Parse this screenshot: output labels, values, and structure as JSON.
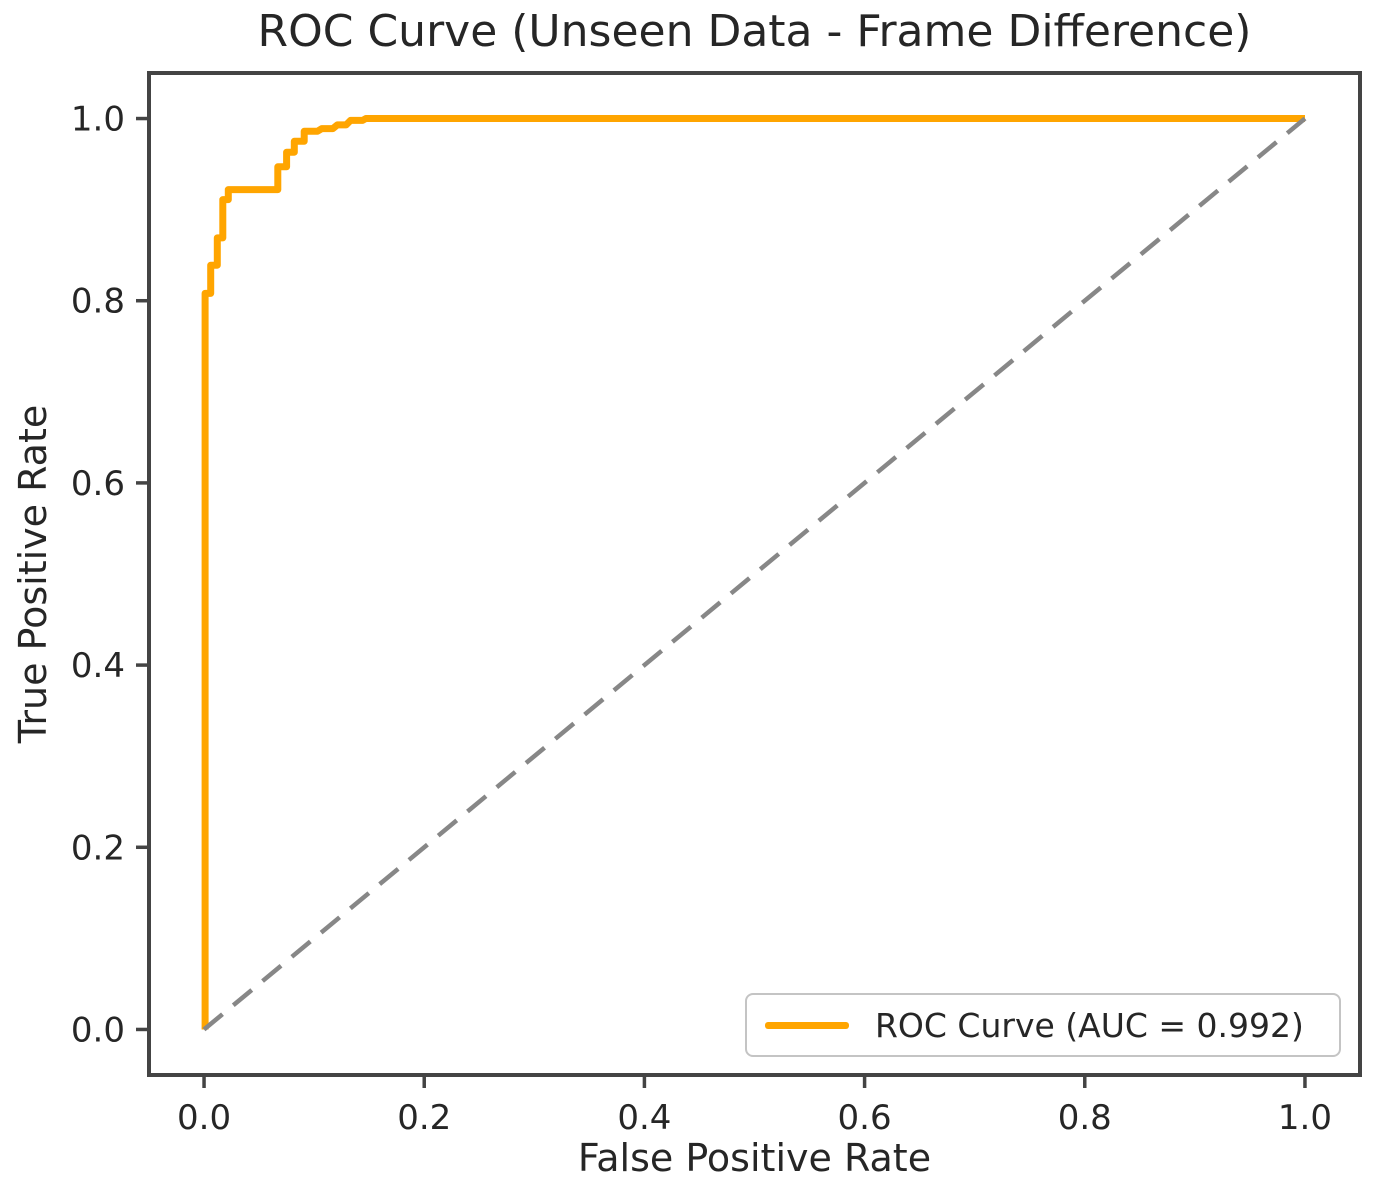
{
  "chart_data": {
    "type": "line",
    "title": "ROC Curve (Unseen Data - Frame Difference)",
    "xlabel": "False Positive Rate",
    "ylabel": "True Positive Rate",
    "xlim": [
      -0.05,
      1.05
    ],
    "ylim": [
      -0.05,
      1.05
    ],
    "xticks": [
      0.0,
      0.2,
      0.4,
      0.6,
      0.8,
      1.0
    ],
    "yticks": [
      0.0,
      0.2,
      0.4,
      0.6,
      0.8,
      1.0
    ],
    "grid": false,
    "auc": 0.992,
    "colors": {
      "roc_curve": "#FFA500",
      "chance_line": "#878787",
      "spine": "#444444",
      "tick": "#444444",
      "text": "#262626",
      "legend_border": "#c4c4c4",
      "background": "#ffffff"
    },
    "legend": {
      "position": "lower right",
      "entries": [
        {
          "label": "ROC Curve (AUC = 0.992)",
          "color": "#FFA500",
          "style": "solid"
        }
      ]
    },
    "series": [
      {
        "name": "ROC Curve (AUC = 0.992)",
        "style": "solid",
        "color": "#FFA500",
        "line_width": 7,
        "points": [
          [
            0.001,
            0.0
          ],
          [
            0.001,
            0.808
          ],
          [
            0.006,
            0.808
          ],
          [
            0.006,
            0.839
          ],
          [
            0.012,
            0.839
          ],
          [
            0.012,
            0.869
          ],
          [
            0.017,
            0.869
          ],
          [
            0.017,
            0.911
          ],
          [
            0.022,
            0.911
          ],
          [
            0.022,
            0.922
          ],
          [
            0.067,
            0.922
          ],
          [
            0.067,
            0.947
          ],
          [
            0.075,
            0.947
          ],
          [
            0.075,
            0.963
          ],
          [
            0.082,
            0.963
          ],
          [
            0.082,
            0.975
          ],
          [
            0.091,
            0.975
          ],
          [
            0.091,
            0.986
          ],
          [
            0.103,
            0.986
          ],
          [
            0.107,
            0.989
          ],
          [
            0.117,
            0.989
          ],
          [
            0.121,
            0.993
          ],
          [
            0.129,
            0.993
          ],
          [
            0.133,
            0.998
          ],
          [
            0.144,
            0.998
          ],
          [
            0.147,
            1.0
          ],
          [
            1.0,
            1.0
          ]
        ]
      },
      {
        "name": "chance-diagonal",
        "style": "dashed",
        "color": "#878787",
        "line_width": 4.5,
        "points": [
          [
            0.0,
            0.0
          ],
          [
            1.0,
            1.0
          ]
        ]
      }
    ]
  }
}
